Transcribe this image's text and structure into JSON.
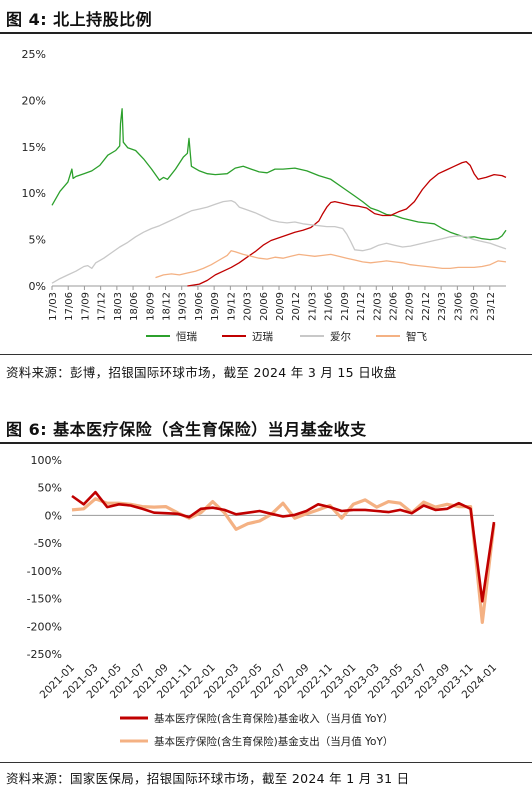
{
  "figures": [
    {
      "title": "图 4: 北上持股比例",
      "source": "资料来源：彭博，招银国际环球市场，截至 2024 年 3 月 15 日收盘"
    },
    {
      "title": "图 6: 基本医疗保险（含生育保险）当月基金收支",
      "source": "资料来源：国家医保局，招银国际环球市场，截至 2024 年 1 月 31 日"
    }
  ],
  "chart_data": [
    {
      "type": "line",
      "title": "",
      "xlabel": "",
      "ylabel": "",
      "ylim": [
        0,
        25
      ],
      "y_ticks": [
        "0%",
        "5%",
        "10%",
        "15%",
        "20%",
        "25%"
      ],
      "x_ticks": [
        "17/03",
        "17/06",
        "17/09",
        "17/12",
        "18/03",
        "18/06",
        "18/09",
        "18/12",
        "19/03",
        "19/06",
        "19/09",
        "19/12",
        "20/03",
        "20/06",
        "20/09",
        "20/12",
        "21/03",
        "21/06",
        "21/09",
        "21/12",
        "22/03",
        "22/06",
        "22/09",
        "22/12",
        "23/03",
        "23/06",
        "23/09",
        "23/12"
      ],
      "x_range": [
        "17/03",
        "24/03"
      ],
      "grid": false,
      "legend": "bottom",
      "series": [
        {
          "name": "恒瑞",
          "color": "#2ca02c",
          "points": [
            [
              0,
              8.7
            ],
            [
              2,
              10.2
            ],
            [
              4,
              11.2
            ],
            [
              5,
              12.6
            ],
            [
              5.3,
              11.6
            ],
            [
              6,
              11.8
            ],
            [
              8,
              12.1
            ],
            [
              10,
              12.4
            ],
            [
              12,
              13.0
            ],
            [
              14,
              14.1
            ],
            [
              16,
              14.6
            ],
            [
              17,
              15.1
            ],
            [
              17.2,
              17.5
            ],
            [
              17.6,
              19.1
            ],
            [
              17.9,
              15.5
            ],
            [
              19,
              14.9
            ],
            [
              21,
              14.6
            ],
            [
              23,
              13.7
            ],
            [
              25,
              12.6
            ],
            [
              27,
              11.4
            ],
            [
              28,
              11.7
            ],
            [
              29,
              11.5
            ],
            [
              31,
              12.6
            ],
            [
              33,
              13.9
            ],
            [
              34,
              14.3
            ],
            [
              34.4,
              15.9
            ],
            [
              35,
              12.9
            ],
            [
              37,
              12.4
            ],
            [
              39,
              12.1
            ],
            [
              41,
              12.0
            ],
            [
              44,
              12.1
            ],
            [
              46,
              12.7
            ],
            [
              48,
              12.9
            ],
            [
              50,
              12.6
            ],
            [
              52,
              12.3
            ],
            [
              54,
              12.2
            ],
            [
              56,
              12.6
            ],
            [
              58,
              12.6
            ],
            [
              61,
              12.7
            ],
            [
              64,
              12.4
            ],
            [
              67,
              11.9
            ],
            [
              70,
              11.5
            ],
            [
              73,
              10.6
            ],
            [
              76,
              9.7
            ],
            [
              78,
              9.1
            ],
            [
              80,
              8.4
            ],
            [
              82,
              8.1
            ],
            [
              84,
              7.7
            ],
            [
              86,
              7.6
            ],
            [
              88,
              7.3
            ],
            [
              90,
              7.1
            ],
            [
              92,
              6.9
            ],
            [
              94,
              6.8
            ],
            [
              96,
              6.7
            ],
            [
              98,
              6.2
            ],
            [
              100,
              5.8
            ],
            [
              102,
              5.5
            ],
            [
              104,
              5.2
            ],
            [
              106,
              5.3
            ],
            [
              108,
              5.1
            ],
            [
              110,
              5.0
            ],
            [
              112,
              5.1
            ],
            [
              113,
              5.4
            ],
            [
              114,
              6.0
            ]
          ]
        },
        {
          "name": "迈瑞",
          "color": "#c00000",
          "points": [
            [
              34,
              0.0
            ],
            [
              37,
              0.2
            ],
            [
              39,
              0.6
            ],
            [
              41,
              1.2
            ],
            [
              43,
              1.6
            ],
            [
              45,
              2.0
            ],
            [
              47,
              2.5
            ],
            [
              49,
              3.1
            ],
            [
              51,
              3.7
            ],
            [
              53,
              4.4
            ],
            [
              55,
              4.9
            ],
            [
              57,
              5.2
            ],
            [
              59,
              5.5
            ],
            [
              61,
              5.8
            ],
            [
              63,
              6.0
            ],
            [
              65,
              6.3
            ],
            [
              67,
              7.0
            ],
            [
              68,
              7.8
            ],
            [
              69,
              8.5
            ],
            [
              70,
              9.0
            ],
            [
              71,
              9.1
            ],
            [
              73,
              8.9
            ],
            [
              75,
              8.7
            ],
            [
              77,
              8.6
            ],
            [
              79,
              8.4
            ],
            [
              80,
              8.1
            ],
            [
              81,
              7.8
            ],
            [
              83,
              7.6
            ],
            [
              85,
              7.6
            ],
            [
              87,
              8.0
            ],
            [
              89,
              8.3
            ],
            [
              91,
              9.1
            ],
            [
              93,
              10.4
            ],
            [
              95,
              11.4
            ],
            [
              97,
              12.1
            ],
            [
              99,
              12.5
            ],
            [
              101,
              12.9
            ],
            [
              103,
              13.3
            ],
            [
              104,
              13.4
            ],
            [
              105,
              13.0
            ],
            [
              106,
              12.1
            ],
            [
              107,
              11.5
            ],
            [
              109,
              11.7
            ],
            [
              111,
              12.0
            ],
            [
              113,
              11.9
            ],
            [
              114,
              11.7
            ]
          ]
        },
        {
          "name": "爱尔",
          "color": "#c8c8c8",
          "points": [
            [
              0,
              0.3
            ],
            [
              2,
              0.8
            ],
            [
              4,
              1.2
            ],
            [
              6,
              1.6
            ],
            [
              8,
              2.1
            ],
            [
              9,
              2.2
            ],
            [
              10,
              1.9
            ],
            [
              11,
              2.5
            ],
            [
              13,
              3.0
            ],
            [
              15,
              3.6
            ],
            [
              17,
              4.2
            ],
            [
              19,
              4.7
            ],
            [
              21,
              5.3
            ],
            [
              23,
              5.8
            ],
            [
              25,
              6.2
            ],
            [
              27,
              6.5
            ],
            [
              29,
              6.9
            ],
            [
              31,
              7.3
            ],
            [
              33,
              7.7
            ],
            [
              35,
              8.1
            ],
            [
              37,
              8.3
            ],
            [
              39,
              8.5
            ],
            [
              41,
              8.8
            ],
            [
              43,
              9.1
            ],
            [
              45,
              9.2
            ],
            [
              46,
              9.0
            ],
            [
              47,
              8.5
            ],
            [
              49,
              8.2
            ],
            [
              51,
              7.9
            ],
            [
              53,
              7.5
            ],
            [
              55,
              7.1
            ],
            [
              57,
              6.9
            ],
            [
              59,
              6.8
            ],
            [
              61,
              6.9
            ],
            [
              63,
              6.7
            ],
            [
              65,
              6.6
            ],
            [
              67,
              6.5
            ],
            [
              69,
              6.4
            ],
            [
              71,
              6.4
            ],
            [
              73,
              6.2
            ],
            [
              74,
              5.6
            ],
            [
              75,
              4.8
            ],
            [
              76,
              3.9
            ],
            [
              78,
              3.8
            ],
            [
              80,
              4.0
            ],
            [
              82,
              4.4
            ],
            [
              84,
              4.6
            ],
            [
              86,
              4.4
            ],
            [
              88,
              4.2
            ],
            [
              90,
              4.3
            ],
            [
              92,
              4.5
            ],
            [
              94,
              4.7
            ],
            [
              96,
              4.9
            ],
            [
              98,
              5.1
            ],
            [
              100,
              5.3
            ],
            [
              102,
              5.4
            ],
            [
              104,
              5.3
            ],
            [
              106,
              5.0
            ],
            [
              108,
              4.8
            ],
            [
              110,
              4.6
            ],
            [
              112,
              4.3
            ],
            [
              114,
              4.0
            ]
          ]
        },
        {
          "name": "智飞",
          "color": "#f4b183",
          "points": [
            [
              26,
              0.9
            ],
            [
              28,
              1.2
            ],
            [
              30,
              1.3
            ],
            [
              32,
              1.2
            ],
            [
              34,
              1.4
            ],
            [
              36,
              1.6
            ],
            [
              38,
              1.9
            ],
            [
              40,
              2.3
            ],
            [
              42,
              2.8
            ],
            [
              44,
              3.3
            ],
            [
              45,
              3.8
            ],
            [
              46,
              3.7
            ],
            [
              48,
              3.4
            ],
            [
              50,
              3.2
            ],
            [
              52,
              3.0
            ],
            [
              54,
              2.9
            ],
            [
              56,
              3.1
            ],
            [
              58,
              3.0
            ],
            [
              60,
              3.2
            ],
            [
              62,
              3.4
            ],
            [
              64,
              3.3
            ],
            [
              66,
              3.2
            ],
            [
              68,
              3.3
            ],
            [
              70,
              3.4
            ],
            [
              72,
              3.2
            ],
            [
              74,
              3.0
            ],
            [
              76,
              2.8
            ],
            [
              78,
              2.6
            ],
            [
              80,
              2.5
            ],
            [
              82,
              2.6
            ],
            [
              84,
              2.7
            ],
            [
              86,
              2.6
            ],
            [
              88,
              2.5
            ],
            [
              90,
              2.3
            ],
            [
              92,
              2.2
            ],
            [
              94,
              2.1
            ],
            [
              96,
              2.0
            ],
            [
              98,
              1.9
            ],
            [
              100,
              1.9
            ],
            [
              102,
              2.0
            ],
            [
              104,
              2.0
            ],
            [
              106,
              2.0
            ],
            [
              108,
              2.1
            ],
            [
              110,
              2.3
            ],
            [
              112,
              2.7
            ],
            [
              114,
              2.6
            ]
          ]
        }
      ]
    },
    {
      "type": "line",
      "title": "",
      "xlabel": "",
      "ylabel": "",
      "ylim": [
        -250,
        100
      ],
      "y_ticks": [
        "100%",
        "50%",
        "0%",
        "-50%",
        "-100%",
        "-150%",
        "-200%",
        "-250%"
      ],
      "categories": [
        "2021-01",
        "2021-02",
        "2021-03",
        "2021-04",
        "2021-05",
        "2021-06",
        "2021-07",
        "2021-08",
        "2021-09",
        "2021-10",
        "2021-11",
        "2021-12",
        "2022-01",
        "2022-02",
        "2022-03",
        "2022-04",
        "2022-05",
        "2022-06",
        "2022-07",
        "2022-08",
        "2022-09",
        "2022-10",
        "2022-11",
        "2022-12",
        "2023-01",
        "2023-02",
        "2023-03",
        "2023-04",
        "2023-05",
        "2023-06",
        "2023-07",
        "2023-08",
        "2023-09",
        "2023-10",
        "2023-11",
        "2023-12",
        "2024-01"
      ],
      "x_tick_labels": [
        "2021-01",
        "2021-03",
        "2021-05",
        "2021-07",
        "2021-09",
        "2021-11",
        "2022-01",
        "2022-03",
        "2022-05",
        "2022-07",
        "2022-09",
        "2022-11",
        "2023-01",
        "2023-03",
        "2023-05",
        "2023-07",
        "2023-09",
        "2023-11",
        "2024-01"
      ],
      "grid": false,
      "legend": "bottom",
      "series": [
        {
          "name": "基本医疗保险(含生育保险)基金收入（当月值 YoY）",
          "color": "#c00000",
          "values": [
            35,
            20,
            42,
            15,
            20,
            18,
            12,
            5,
            4,
            3,
            -3,
            12,
            14,
            10,
            2,
            5,
            8,
            3,
            -2,
            1,
            8,
            20,
            15,
            8,
            10,
            10,
            8,
            6,
            10,
            4,
            18,
            10,
            12,
            22,
            12,
            -155,
            -12
          ]
        },
        {
          "name": "基本医疗保险(含生育保险)基金支出（当月值 YoY）",
          "color": "#f4b183",
          "values": [
            10,
            12,
            30,
            22,
            22,
            20,
            16,
            15,
            16,
            5,
            -5,
            5,
            25,
            5,
            -25,
            -15,
            -10,
            2,
            22,
            -5,
            3,
            10,
            18,
            -5,
            20,
            28,
            15,
            25,
            22,
            5,
            24,
            15,
            20,
            16,
            16,
            -193,
            -15
          ]
        }
      ]
    }
  ]
}
